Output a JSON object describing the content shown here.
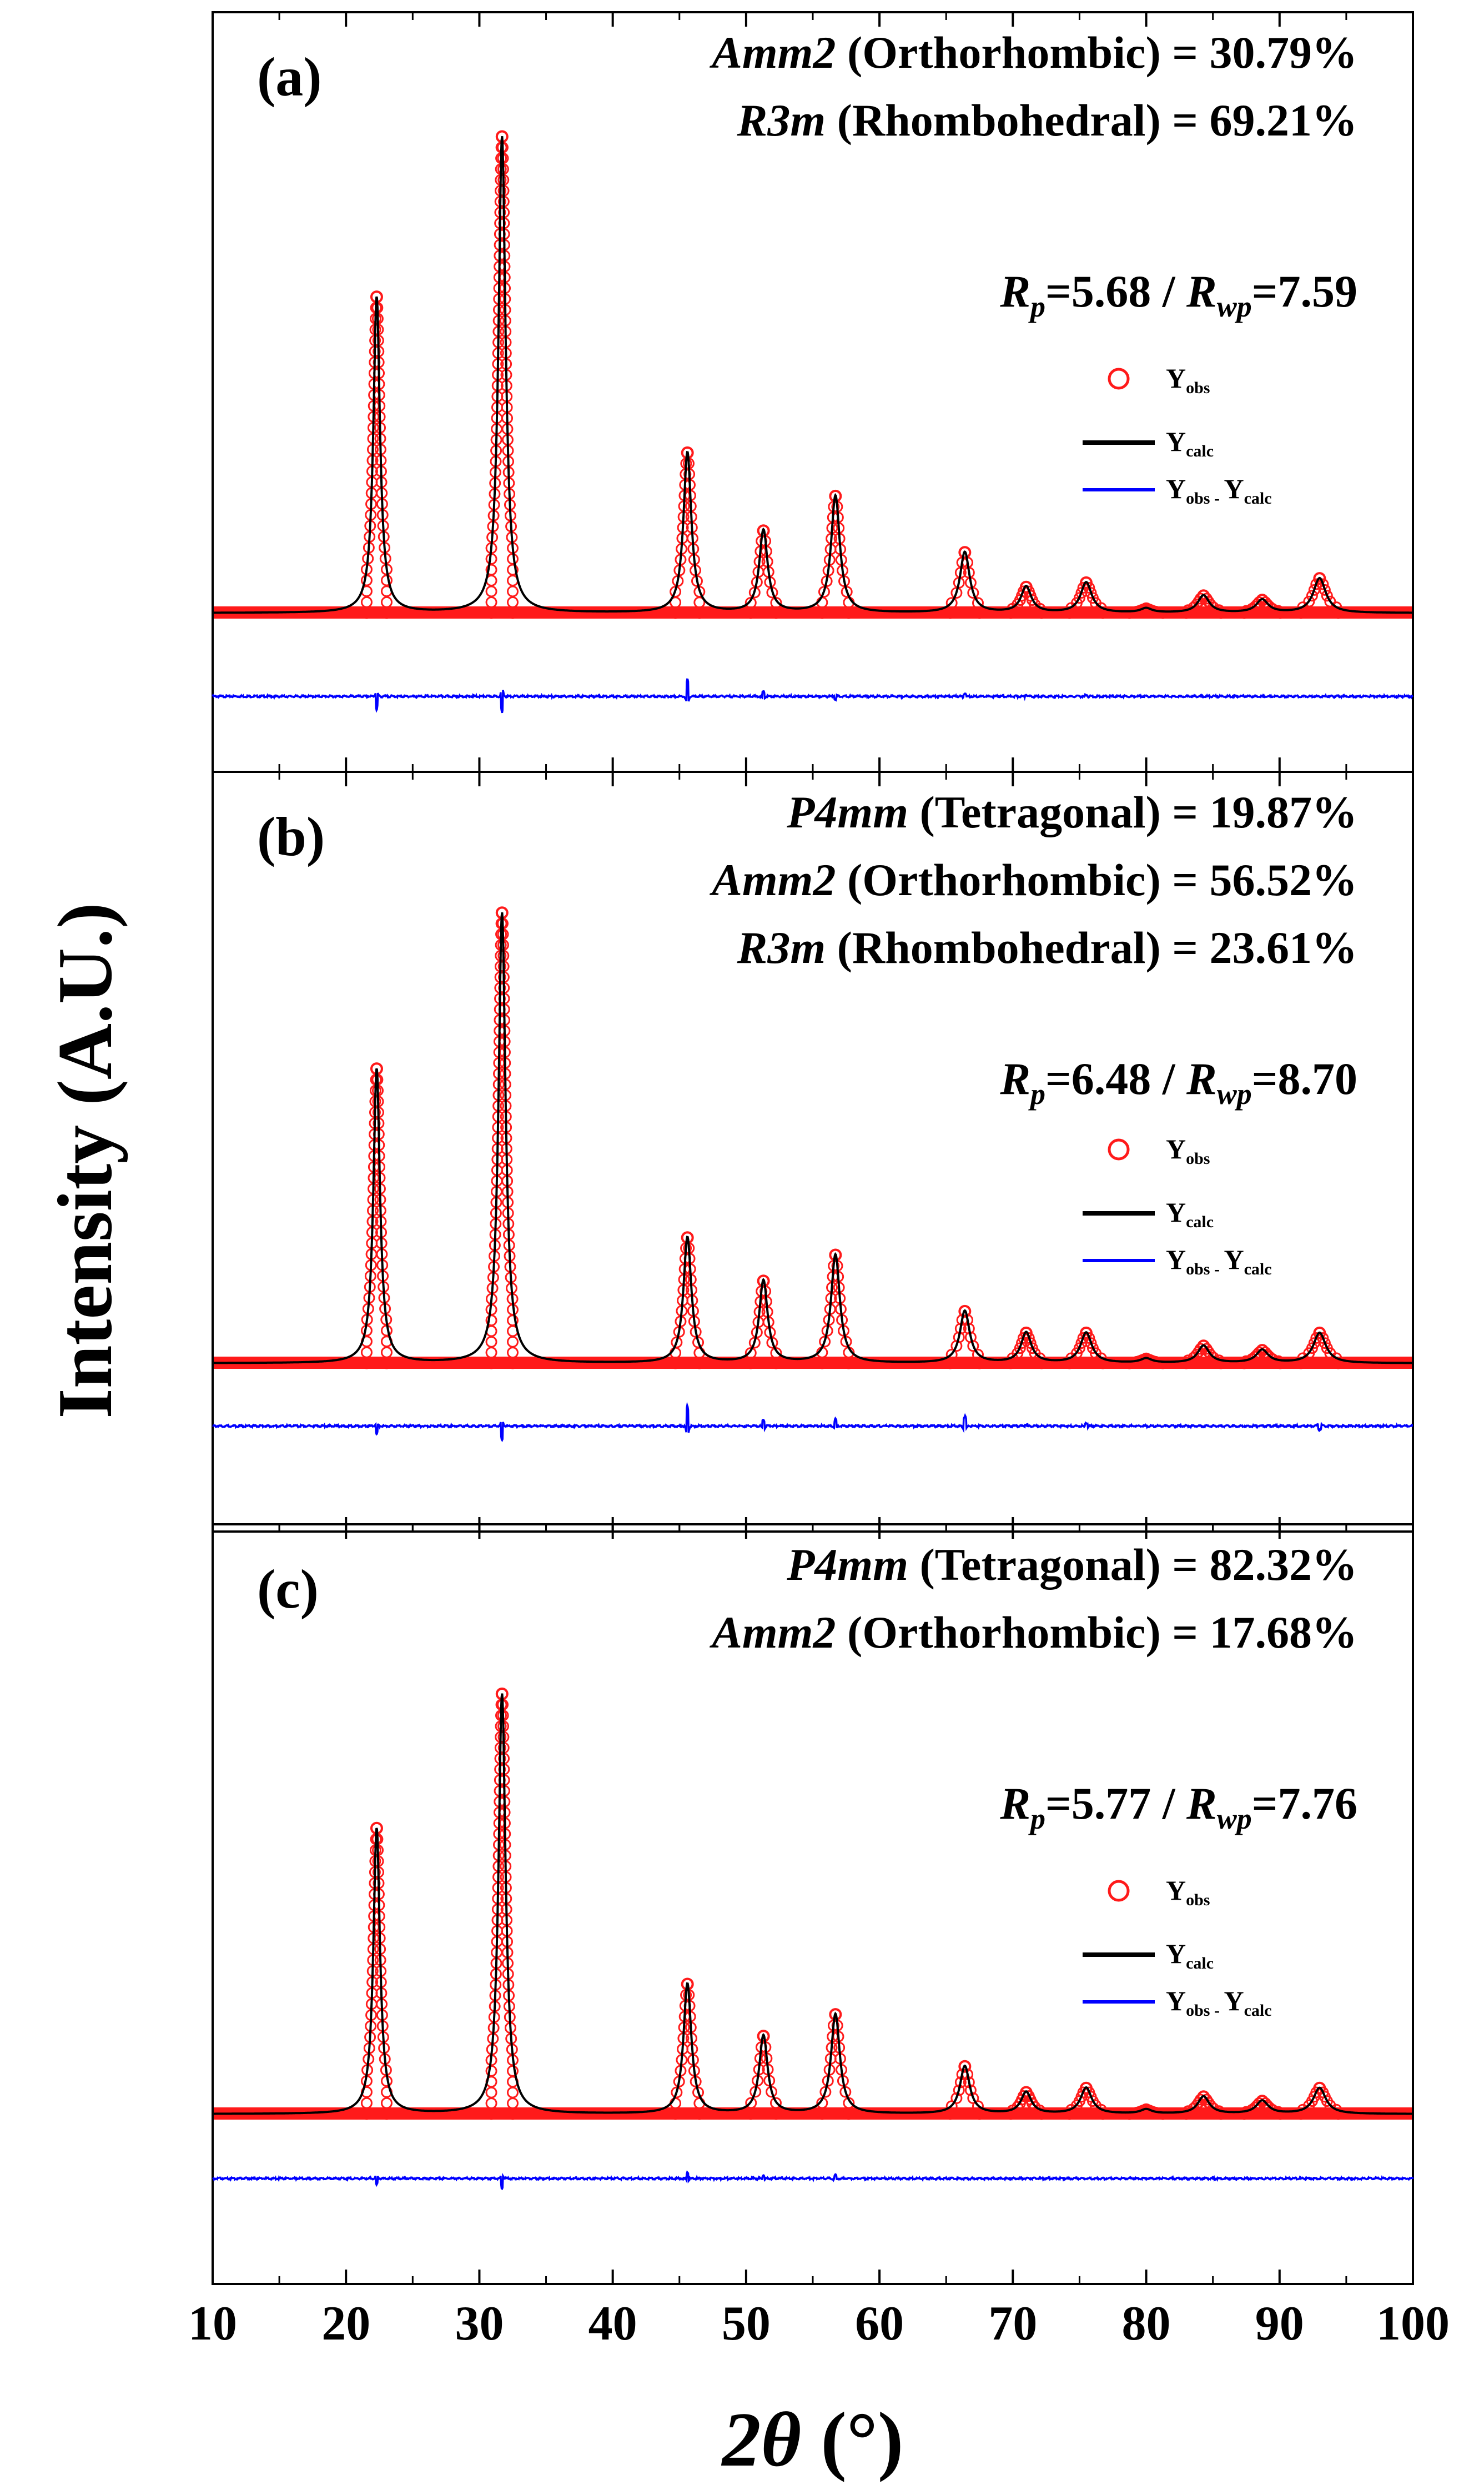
{
  "chart_data": {
    "type": "line",
    "xlabel": {
      "symbol": "2θ",
      "unit": "(°)"
    },
    "ylabel": "Intensity (A.U.)",
    "xlim": [
      10,
      100
    ],
    "xticks": [
      "10",
      "20",
      "30",
      "40",
      "50",
      "60",
      "70",
      "80",
      "90",
      "100"
    ],
    "colors": {
      "observed": "#ff1a1a",
      "calculated": "#000000",
      "difference": "#0000ff"
    },
    "legend": {
      "obs": {
        "main": "Y",
        "sub": "obs"
      },
      "calc": {
        "main": "Y",
        "sub": "calc"
      },
      "diff": {
        "main": "Y",
        "sub1": "obs - ",
        "main2": "Y",
        "sub2": "calc"
      }
    },
    "peaks": [
      {
        "x": 22.3,
        "width": 0.3
      },
      {
        "x": 31.7,
        "width": 0.32
      },
      {
        "x": 45.6,
        "width": 0.36
      },
      {
        "x": 51.3,
        "width": 0.38
      },
      {
        "x": 56.7,
        "width": 0.4
      },
      {
        "x": 66.4,
        "width": 0.44
      },
      {
        "x": 71.0,
        "width": 0.46
      },
      {
        "x": 75.5,
        "width": 0.5
      },
      {
        "x": 80.0,
        "width": 0.5
      },
      {
        "x": 84.3,
        "width": 0.52
      },
      {
        "x": 88.7,
        "width": 0.54
      },
      {
        "x": 93.0,
        "width": 0.56
      }
    ],
    "panels": [
      {
        "label": "(a)",
        "phases": [
          {
            "name": "Amm2",
            "system": "(Orthorhombic) = 30.79%"
          },
          {
            "name": "R3m",
            "system": "(Rhombohedral) = 69.21%"
          }
        ],
        "rfactors": {
          "rp": "5.68",
          "rwp": "7.59"
        },
        "intensities": [
          0.73,
          1.1,
          0.37,
          0.19,
          0.27,
          0.14,
          0.06,
          0.07,
          0.01,
          0.04,
          0.03,
          0.08
        ],
        "diff_spikes": [
          -0.04,
          -0.05,
          0.05,
          0.015,
          -0.01,
          0.01,
          0.005,
          0.005,
          0.0,
          0.0,
          0.0,
          0.0
        ]
      },
      {
        "label": "(b)",
        "phases": [
          {
            "name": "P4mm",
            "system": "(Tetragonal) = 19.87%"
          },
          {
            "name": "Amm2",
            "system": "(Orthorhombic) = 56.52%"
          },
          {
            "name": "R3m",
            "system": "(Rhombohedral) = 23.61%"
          }
        ],
        "rfactors": {
          "rp": "6.48",
          "rwp": "8.70"
        },
        "intensities": [
          0.68,
          1.04,
          0.29,
          0.19,
          0.25,
          0.12,
          0.07,
          0.07,
          0.01,
          0.04,
          0.03,
          0.07
        ],
        "diff_spikes": [
          -0.025,
          -0.045,
          0.06,
          0.02,
          0.02,
          0.03,
          0.005,
          0.01,
          0.0,
          0.0,
          0.0,
          -0.01
        ]
      },
      {
        "label": "(c)",
        "phases": [
          {
            "name": "P4mm",
            "system": "(Tetragonal) = 82.32%"
          },
          {
            "name": "Amm2",
            "system": "(Orthorhombic) = 17.68%"
          }
        ],
        "rfactors": {
          "rp": "5.77",
          "rwp": "7.76"
        },
        "intensities": [
          0.66,
          0.97,
          0.3,
          0.18,
          0.23,
          0.11,
          0.05,
          0.06,
          0.01,
          0.04,
          0.03,
          0.06
        ],
        "diff_spikes": [
          -0.02,
          -0.03,
          0.02,
          0.01,
          0.01,
          0.0,
          0.0,
          0.0,
          0.0,
          0.0,
          0.0,
          0.0
        ]
      }
    ]
  }
}
